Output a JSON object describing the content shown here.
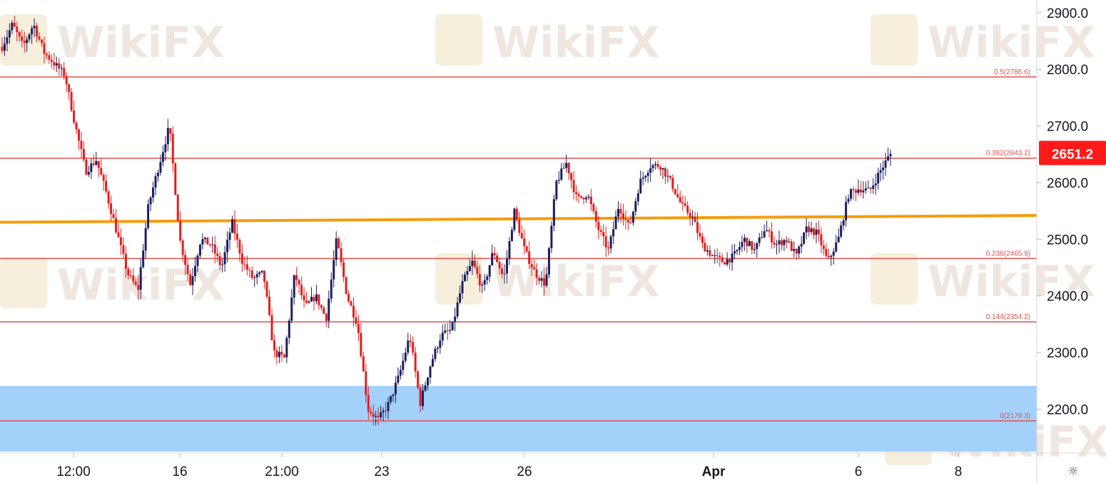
{
  "chart_data": {
    "type": "candlestick",
    "title": "",
    "xlabel": "",
    "ylabel": "",
    "ylim": [
      2120,
      2920
    ],
    "y_ticks": [
      "2200.0",
      "2300.0",
      "2400.0",
      "2500.0",
      "2600.0",
      "2700.0",
      "2800.0",
      "2900.0"
    ],
    "x_ticks": [
      "12:00",
      "16",
      "21:00",
      "23",
      "26",
      "Apr",
      "6",
      "8"
    ],
    "last_price": "2651.2",
    "fib_levels": [
      {
        "label": "0.5(2786.6)",
        "value": 2786.6
      },
      {
        "label": "0.382(2643.2)",
        "value": 2643.2
      },
      {
        "label": "0.236(2465.9)",
        "value": 2465.9
      },
      {
        "label": "0.144(2354.2)",
        "value": 2354.2
      },
      {
        "label": "0(2179.3)",
        "value": 2179.3
      }
    ],
    "support_zone": [
      2125,
      2241
    ],
    "trendline": {
      "start": 2530,
      "end": 2542
    },
    "price_path": [
      [
        "start",
        2840
      ],
      [
        "",
        2880
      ],
      [
        "",
        2840
      ],
      [
        "",
        2880
      ],
      [
        "",
        2830
      ],
      [
        "",
        2810
      ],
      [
        "",
        2790
      ],
      [
        "",
        2700
      ],
      [
        "",
        2620
      ],
      [
        "",
        2640
      ],
      [
        "",
        2580
      ],
      [
        "",
        2510
      ],
      [
        "",
        2440
      ],
      [
        "",
        2410
      ],
      [
        "",
        2560
      ],
      [
        "",
        2630
      ],
      [
        "",
        2700
      ],
      [
        "",
        2500
      ],
      [
        "",
        2420
      ],
      [
        "",
        2500
      ],
      [
        "",
        2490
      ],
      [
        "",
        2450
      ],
      [
        "",
        2530
      ],
      [
        "",
        2460
      ],
      [
        "",
        2430
      ],
      [
        "",
        2440
      ],
      [
        "",
        2300
      ],
      [
        "",
        2290
      ],
      [
        "",
        2440
      ],
      [
        "",
        2380
      ],
      [
        "",
        2400
      ],
      [
        "",
        2360
      ],
      [
        "",
        2500
      ],
      [
        "",
        2400
      ],
      [
        "",
        2350
      ],
      [
        "",
        2200
      ],
      [
        "",
        2181
      ],
      [
        "",
        2210
      ],
      [
        "",
        2260
      ],
      [
        "",
        2330
      ],
      [
        "",
        2210
      ],
      [
        "",
        2280
      ],
      [
        "",
        2330
      ],
      [
        "",
        2340
      ],
      [
        "",
        2420
      ],
      [
        "",
        2460
      ],
      [
        "",
        2410
      ],
      [
        "",
        2480
      ],
      [
        "",
        2430
      ],
      [
        "",
        2550
      ],
      [
        "",
        2480
      ],
      [
        "",
        2440
      ],
      [
        "",
        2420
      ],
      [
        "",
        2600
      ],
      [
        "",
        2635
      ],
      [
        "",
        2570
      ],
      [
        "",
        2580
      ],
      [
        "",
        2520
      ],
      [
        "",
        2480
      ],
      [
        "",
        2560
      ],
      [
        "",
        2520
      ],
      [
        "",
        2600
      ],
      [
        "",
        2630
      ],
      [
        "",
        2630
      ],
      [
        "",
        2600
      ],
      [
        "",
        2560
      ],
      [
        "",
        2540
      ],
      [
        "",
        2490
      ],
      [
        "",
        2470
      ],
      [
        "",
        2460
      ],
      [
        "",
        2470
      ],
      [
        "",
        2500
      ],
      [
        "",
        2480
      ],
      [
        "",
        2520
      ],
      [
        "",
        2490
      ],
      [
        "",
        2500
      ],
      [
        "",
        2470
      ],
      [
        "",
        2520
      ],
      [
        "",
        2510
      ],
      [
        "",
        2460
      ],
      [
        "",
        2500
      ],
      [
        "",
        2580
      ],
      [
        "",
        2590
      ],
      [
        "",
        2585
      ],
      [
        "",
        2620
      ],
      [
        "end",
        2651
      ]
    ],
    "bullish_color": "#1b1f5e",
    "bearish_color": "#e31e1e",
    "fib_line_color": "#e0524f",
    "trendline_color": "#f59c0b",
    "zone_color": "#a3d1fa",
    "price_tag_color": "#ff1a1a"
  },
  "watermark": {
    "text": "WikiFX"
  },
  "settings": {
    "icon": "gear-icon",
    "glyph": "☼"
  }
}
